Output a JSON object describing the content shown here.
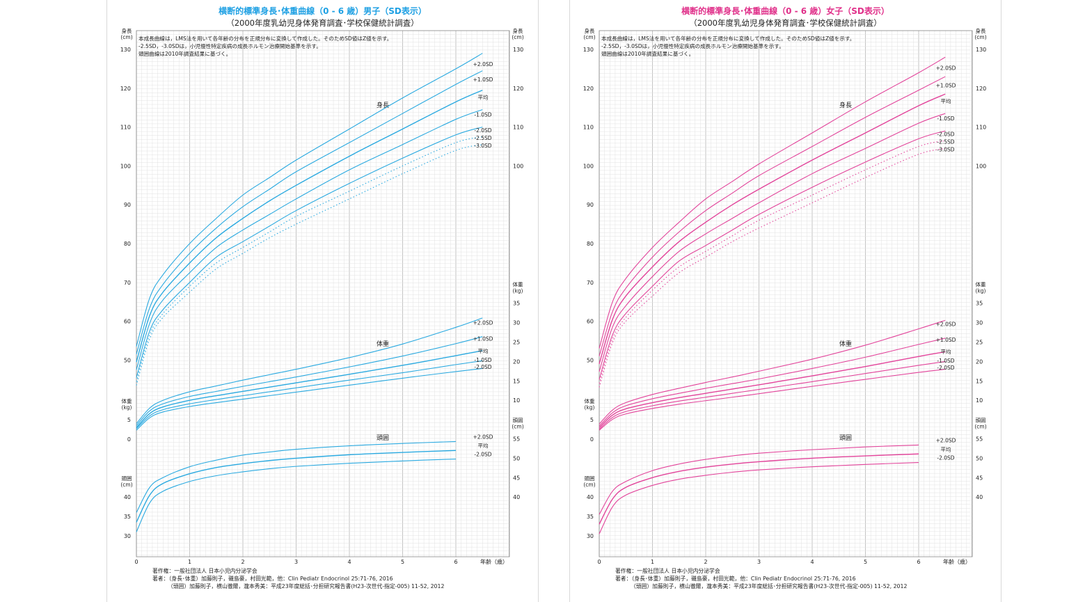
{
  "panels": [
    {
      "title": "横断的標準身長･体重曲線（0 - 6 歳）男子（SD表示）",
      "subtitle": "（2000年度乳幼児身体発育調査･学校保健統計調査）",
      "title_color": "#1ea0e3",
      "notes": [
        "本成長曲線は，LMS法を用いて各年齢の分布を正規分布に変換して作成した。そのためSD値はZ値を示す。",
        "-2.5SD，-3.0SDは，小児慢性特定疾病の成長ホルモン治療開始基準を示す。",
        "頭囲曲線は2010年調査結果に基づく。"
      ],
      "credits": [
        "著作権：一般社団法人 日本小児内分泌学会",
        "著者：（身長･体重）加藤則子，磯島豪，村田光範，他：Clin Pediatr Endocrinol 25:71-76, 2016",
        "（頭囲）加藤則子，横山徹爾，瀧本秀美：平成23年度総括･分担研究報告書(H23-次世代-指定-005) 11-52, 2012"
      ]
    },
    {
      "title": "横断的標準身長･体重曲線（0 - 6 歳）女子（SD表示）",
      "subtitle": "（2000年度乳幼児身体発育調査･学校保健統計調査）",
      "title_color": "#e0308a",
      "notes": [
        "本成長曲線は，LMS法を用いて各年齢の分布を正規分布に変換して作成した。そのためSD値はZ値を示す。",
        "-2.5SD，-3.0SDは，小児慢性特定疾病の成長ホルモン治療開始基準を示す。",
        "頭囲曲線は2010年調査結果に基づく。"
      ],
      "credits": [
        "著作権：一般社団法人 日本小児内分泌学会",
        "著者：（身長･体重）加藤則子，磯島豪，村田光範，他：Clin Pediatr Endocrinol 25:71-76, 2016",
        "（頭囲）加藤則子，横山徹爾，瀧本秀美：平成23年度総括･分担研究報告書(H23-次世代-指定-005) 11-52, 2012"
      ]
    }
  ],
  "chart_data": [
    {
      "type": "line",
      "title": "横断的標準身長･体重曲線（0 - 6 歳）男子（SD表示）",
      "color": "#29a9e0",
      "x_ticks": [
        0,
        1,
        2,
        3,
        4,
        5,
        6
      ],
      "xlabel": "年齢（歳）",
      "x": [
        0,
        0.25,
        0.5,
        1,
        1.5,
        2,
        2.5,
        3,
        4,
        5,
        6,
        6.5
      ],
      "groups": [
        {
          "label": "身長",
          "unit_label": [
            "身長",
            "(cm)"
          ],
          "left_ticks": [
            50,
            60,
            70,
            80,
            90,
            100,
            110,
            120,
            130
          ],
          "right_ticks": [
            100,
            110,
            120,
            130
          ],
          "series": [
            {
              "name": "+2.0SD",
              "values": [
                53.5,
                66,
                72,
                80,
                86.5,
                92.5,
                97,
                101.5,
                109.5,
                117.5,
                125,
                129
              ]
            },
            {
              "name": "+1.0SD",
              "values": [
                51.5,
                63.5,
                69.5,
                77.5,
                84,
                89.5,
                94,
                98.5,
                106,
                113.5,
                121,
                124.5
              ]
            },
            {
              "name": "平均",
              "values": [
                49.5,
                61.5,
                67.5,
                75,
                81.5,
                86.5,
                91,
                95,
                102.5,
                109.5,
                116.5,
                119.5
              ]
            },
            {
              "name": "-1.0SD",
              "values": [
                47.5,
                59.5,
                65.5,
                72.5,
                79,
                83.5,
                87.5,
                91.5,
                99,
                105.5,
                112,
                114.5
              ]
            },
            {
              "name": "-2.0SD",
              "values": [
                45.5,
                57.5,
                63,
                70,
                76.5,
                80.5,
                84.5,
                88.5,
                95.5,
                102,
                108,
                110
              ]
            },
            {
              "name": "-2.5SD",
              "values": [
                44.5,
                56.5,
                62,
                69,
                75,
                79,
                83,
                87,
                93.5,
                100,
                106,
                107.5
              ],
              "dashed": true
            },
            {
              "name": "-3.0SD",
              "values": [
                43.5,
                55.5,
                61,
                67.5,
                73.5,
                77.5,
                81.5,
                85,
                91.5,
                98,
                104,
                105.5
              ],
              "dashed": true
            }
          ]
        },
        {
          "label": "体重",
          "unit_label": [
            "体重",
            "(kg)"
          ],
          "left_ticks": [
            0,
            5
          ],
          "right_ticks": [
            10,
            15,
            20,
            25,
            30,
            35
          ],
          "series": [
            {
              "name": "+2.0SD",
              "values": [
                4.0,
                8.0,
                10.0,
                12.2,
                13.7,
                15.2,
                16.6,
                18.0,
                21.0,
                24.5,
                28.8,
                31.2
              ]
            },
            {
              "name": "+1.0SD",
              "values": [
                3.5,
                7.3,
                9.1,
                11.0,
                12.3,
                13.6,
                14.8,
                16.0,
                18.6,
                21.4,
                24.6,
                26.4
              ]
            },
            {
              "name": "平均",
              "values": [
                3.0,
                6.6,
                8.3,
                10.0,
                11.2,
                12.3,
                13.4,
                14.5,
                16.7,
                19.0,
                21.5,
                22.8
              ]
            },
            {
              "name": "-1.0SD",
              "values": [
                2.7,
                6.0,
                7.6,
                9.1,
                10.2,
                11.2,
                12.2,
                13.2,
                15.2,
                17.1,
                19.2,
                20.2
              ]
            },
            {
              "name": "-2.0SD",
              "values": [
                2.3,
                5.5,
                7.0,
                8.4,
                9.4,
                10.3,
                11.2,
                12.1,
                13.9,
                15.7,
                17.4,
                18.2
              ]
            }
          ]
        },
        {
          "label": "頭囲",
          "unit_label": [
            "頭囲",
            "(cm)"
          ],
          "left_ticks": [
            30,
            35,
            40
          ],
          "right_ticks": [
            40,
            45,
            50,
            55
          ],
          "series": [
            {
              "name": "+2.0SD",
              "values": [
                36.0,
                42.5,
                45.0,
                47.8,
                49.5,
                50.8,
                51.6,
                52.3,
                53.2,
                53.8,
                54.3
              ]
            },
            {
              "name": "平均",
              "values": [
                33.5,
                40.5,
                43.5,
                46.0,
                47.6,
                48.6,
                49.4,
                50.0,
                50.9,
                51.5,
                52.0
              ]
            },
            {
              "name": "-2.0SD",
              "values": [
                31.0,
                38.5,
                41.5,
                44.0,
                45.5,
                46.5,
                47.3,
                47.9,
                48.7,
                49.3,
                49.8
              ]
            }
          ]
        }
      ]
    },
    {
      "type": "line",
      "title": "横断的標準身長･体重曲線（0 - 6 歳）女子（SD表示）",
      "color": "#e2439a",
      "x_ticks": [
        0,
        1,
        2,
        3,
        4,
        5,
        6
      ],
      "xlabel": "年齢（歳）",
      "x": [
        0,
        0.25,
        0.5,
        1,
        1.5,
        2,
        2.5,
        3,
        4,
        5,
        6,
        6.5
      ],
      "groups": [
        {
          "label": "身長",
          "unit_label": [
            "身長",
            "(cm)"
          ],
          "left_ticks": [
            50,
            60,
            70,
            80,
            90,
            100,
            110,
            120,
            130
          ],
          "right_ticks": [
            100,
            110,
            120,
            130
          ],
          "series": [
            {
              "name": "+2.0SD",
              "values": [
                53,
                65,
                71,
                79,
                85.5,
                91.5,
                96,
                100.5,
                108.5,
                116.5,
                124,
                128
              ]
            },
            {
              "name": "+1.0SD",
              "values": [
                51,
                62.5,
                68.5,
                76.5,
                83,
                88.5,
                93,
                97.5,
                105,
                112.5,
                119.5,
                123
              ]
            },
            {
              "name": "平均",
              "values": [
                49,
                60.5,
                66.5,
                74,
                80.5,
                85.5,
                90,
                94,
                101.5,
                108.5,
                115.5,
                118.5
              ]
            },
            {
              "name": "-1.0SD",
              "values": [
                47,
                58.5,
                64,
                71.5,
                78,
                82.5,
                86.5,
                90.5,
                98,
                104.5,
                111,
                113.5
              ]
            },
            {
              "name": "-2.0SD",
              "values": [
                45,
                56.5,
                62,
                69,
                75.5,
                79.5,
                83.5,
                87.5,
                94.5,
                101,
                107,
                109
              ]
            },
            {
              "name": "-2.5SD",
              "values": [
                44,
                55.5,
                61,
                68,
                74,
                78,
                82,
                86,
                92.5,
                99,
                105,
                106.5
              ],
              "dashed": true
            },
            {
              "name": "-3.0SD",
              "values": [
                43,
                54.5,
                60,
                66.5,
                72.5,
                76.5,
                80.5,
                84,
                90.5,
                97,
                103,
                104.5
              ],
              "dashed": true
            }
          ]
        },
        {
          "label": "体重",
          "unit_label": [
            "体重",
            "(kg)"
          ],
          "left_ticks": [
            0,
            5
          ],
          "right_ticks": [
            10,
            15,
            20,
            25,
            30,
            35
          ],
          "series": [
            {
              "name": "+2.0SD",
              "values": [
                3.9,
                7.5,
                9.4,
                11.5,
                13.1,
                14.6,
                16.0,
                17.5,
                20.6,
                24.2,
                28.4,
                30.6
              ]
            },
            {
              "name": "+1.0SD",
              "values": [
                3.4,
                6.8,
                8.6,
                10.4,
                11.8,
                13.1,
                14.3,
                15.5,
                18.2,
                21.1,
                24.4,
                26.0
              ]
            },
            {
              "name": "平均",
              "values": [
                3.0,
                6.2,
                7.8,
                9.4,
                10.7,
                11.8,
                12.9,
                14.0,
                16.3,
                18.7,
                21.3,
                22.5
              ]
            },
            {
              "name": "-1.0SD",
              "values": [
                2.6,
                5.6,
                7.1,
                8.6,
                9.8,
                10.8,
                11.8,
                12.8,
                14.8,
                16.9,
                19.0,
                20.0
              ]
            },
            {
              "name": "-2.0SD",
              "values": [
                2.3,
                5.1,
                6.5,
                7.9,
                9.0,
                9.9,
                10.8,
                11.7,
                13.6,
                15.4,
                17.2,
                18.0
              ]
            }
          ]
        },
        {
          "label": "頭囲",
          "unit_label": [
            "頭囲",
            "(cm)"
          ],
          "left_ticks": [
            30,
            35,
            40
          ],
          "right_ticks": [
            40,
            45,
            50,
            55
          ],
          "series": [
            {
              "name": "+2.0SD",
              "values": [
                35.5,
                41.5,
                44.0,
                46.8,
                48.5,
                49.7,
                50.6,
                51.3,
                52.2,
                52.9,
                53.4
              ]
            },
            {
              "name": "平均",
              "values": [
                33.0,
                39.5,
                42.5,
                45.0,
                46.6,
                47.7,
                48.5,
                49.1,
                50.0,
                50.6,
                51.1
              ]
            },
            {
              "name": "-2.0SD",
              "values": [
                30.5,
                37.5,
                40.5,
                43.0,
                44.6,
                45.6,
                46.4,
                47.0,
                47.8,
                48.4,
                48.9
              ]
            }
          ]
        }
      ]
    }
  ]
}
